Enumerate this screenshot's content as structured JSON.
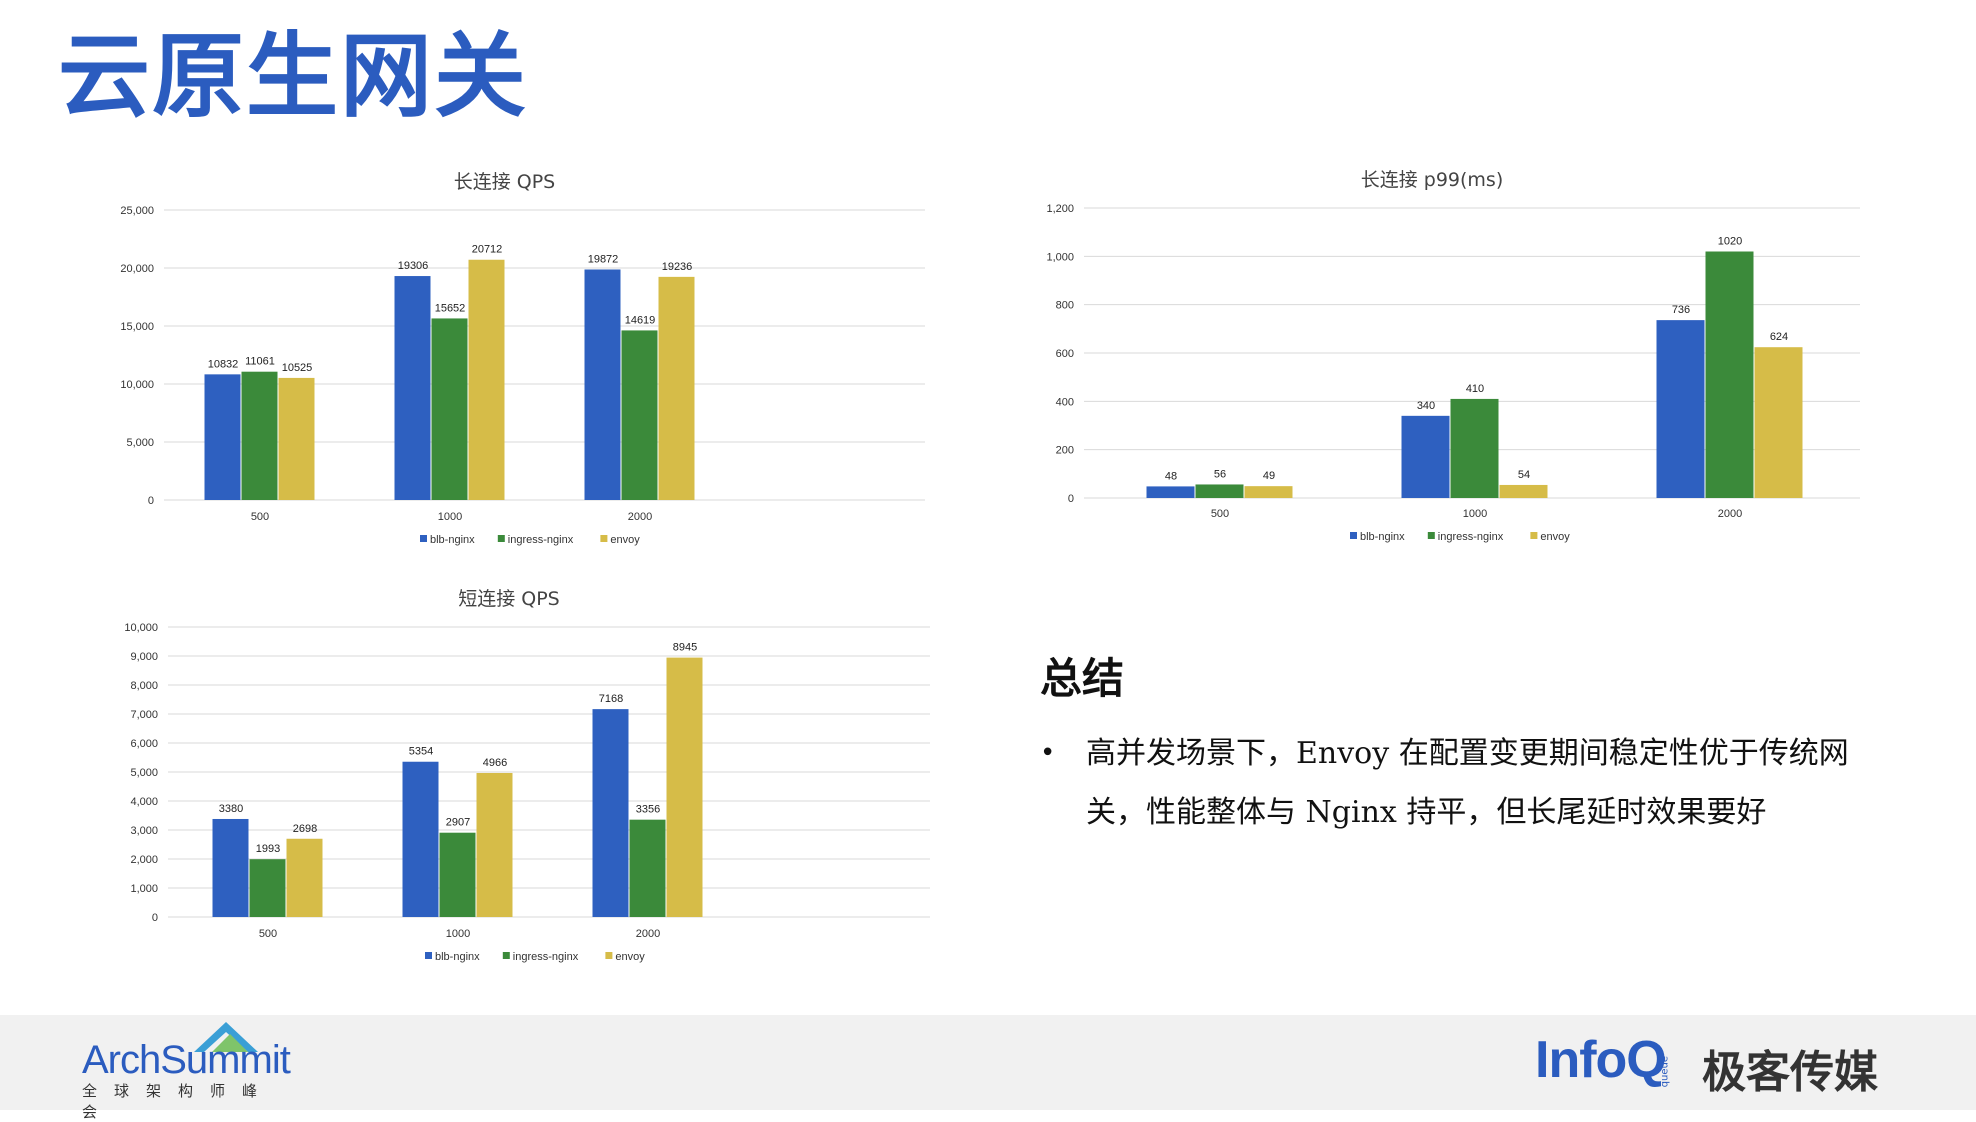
{
  "slide": {
    "title": "云原生网关"
  },
  "colors": {
    "blb_nginx": "#2e60c0",
    "ingress_nginx": "#3b8a3a",
    "envoy": "#d6bc48",
    "title": "#2b5cbf"
  },
  "chart_data": [
    {
      "id": "long_qps",
      "type": "bar",
      "title": "长连接 QPS",
      "categories": [
        "500",
        "1000",
        "2000"
      ],
      "series": [
        {
          "name": "blb-nginx",
          "values": [
            10832,
            19306,
            19872
          ]
        },
        {
          "name": "ingress-nginx",
          "values": [
            11061,
            15652,
            14619
          ]
        },
        {
          "name": "envoy",
          "values": [
            10525,
            20712,
            19236
          ]
        }
      ],
      "ylim": [
        0,
        25000
      ],
      "yticks": [
        0,
        5000,
        10000,
        15000,
        20000,
        25000
      ],
      "ytick_labels": [
        "0",
        "5,000",
        "10,000",
        "15,000",
        "20,000",
        "25,000"
      ],
      "grid": true,
      "legend": "bottom"
    },
    {
      "id": "long_p99",
      "type": "bar",
      "title": "长连接 p99(ms)",
      "categories": [
        "500",
        "1000",
        "2000"
      ],
      "series": [
        {
          "name": "blb-nginx",
          "values": [
            48,
            340,
            736
          ]
        },
        {
          "name": "ingress-nginx",
          "values": [
            56,
            410,
            1020
          ]
        },
        {
          "name": "envoy",
          "values": [
            49,
            54,
            624
          ]
        }
      ],
      "ylim": [
        0,
        1200
      ],
      "yticks": [
        0,
        200,
        400,
        600,
        800,
        1000,
        1200
      ],
      "ytick_labels": [
        "0",
        "200",
        "400",
        "600",
        "800",
        "1,000",
        "1,200"
      ],
      "grid": true,
      "legend": "bottom"
    },
    {
      "id": "short_qps",
      "type": "bar",
      "title": "短连接 QPS",
      "categories": [
        "500",
        "1000",
        "2000"
      ],
      "series": [
        {
          "name": "blb-nginx",
          "values": [
            3380,
            5354,
            7168
          ]
        },
        {
          "name": "ingress-nginx",
          "values": [
            1993,
            2907,
            3356
          ]
        },
        {
          "name": "envoy",
          "values": [
            2698,
            4966,
            8945
          ]
        }
      ],
      "ylim": [
        0,
        10000
      ],
      "yticks": [
        0,
        1000,
        2000,
        3000,
        4000,
        5000,
        6000,
        7000,
        8000,
        9000,
        10000
      ],
      "ytick_labels": [
        "0",
        "1,000",
        "2,000",
        "3,000",
        "4,000",
        "5,000",
        "6,000",
        "7,000",
        "8,000",
        "9,000",
        "10,000"
      ],
      "grid": true,
      "legend": "bottom"
    }
  ],
  "summary": {
    "heading": "总结",
    "items": [
      {
        "bullet": "•",
        "text": "高并发场景下，Envoy 在配置变更期间稳定性优于传统网关，性能整体与 Nginx 持平，但长尾延时效果要好"
      }
    ]
  },
  "footer": {
    "left_logo": {
      "brand_a": "Arch",
      "brand_b": "Summit",
      "tagline": "全球架构师峰会"
    },
    "right_logo": {
      "brand": "InfoQ",
      "brand_small": "ǝnǝnb",
      "company": "极客传媒"
    }
  }
}
